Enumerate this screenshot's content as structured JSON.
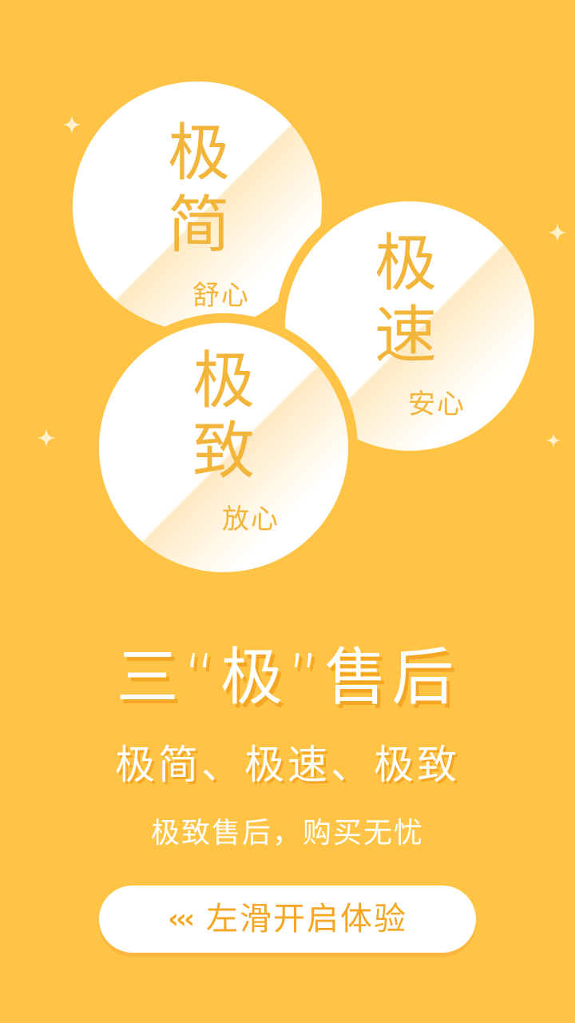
{
  "colors": {
    "background": "#FFC445",
    "accent_text": "#F3B43A",
    "shadow": "#F5A623",
    "white": "#FFFFFF"
  },
  "bubbles": [
    {
      "chars": [
        "极",
        "简"
      ],
      "label": "舒心"
    },
    {
      "chars": [
        "极",
        "速"
      ],
      "label": "安心"
    },
    {
      "chars": [
        "极",
        "致"
      ],
      "label": "放心"
    }
  ],
  "headline": "三“极”售后",
  "subline": "极简、极速、极致",
  "tagline": "极致售后，购买无忧",
  "cta": {
    "arrows": "‹‹‹",
    "label": "左滑开启体验"
  },
  "icons": [
    "sparkle-icon",
    "chevron-left-icon"
  ]
}
